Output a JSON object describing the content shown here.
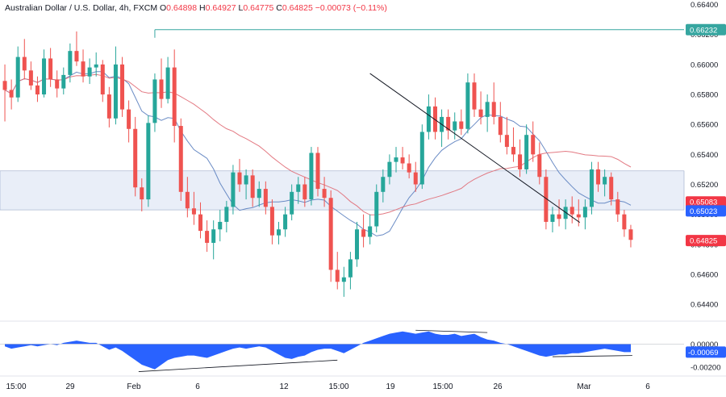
{
  "header": {
    "symbol": "Australian Dollar / U.S. Dollar, 4h, FXCM",
    "open_label": "O",
    "open": "0.64898",
    "high_label": "H",
    "high": "0.64927",
    "low_label": "L",
    "low": "0.64775",
    "close_label": "C",
    "close": "0.64825",
    "change": "−0.00073 (−0.11%)"
  },
  "colors": {
    "up": "#26a69a",
    "down": "#ef5350",
    "ma_fast": "#5b7fbf",
    "ma_slow": "#e06c75",
    "resistance_line": "#36a6a0",
    "zone_fill": "#e9eef8",
    "zone_border": "#9aa9c8",
    "trendline": "#131722",
    "macd_fill": "#2962ff",
    "price_tag_red": "#f23645",
    "price_tag_blue": "#2962ff",
    "price_tag_teal": "#26a69a"
  },
  "chart_data": [
    {
      "type": "candlestick",
      "title": "Australian Dollar / U.S. Dollar, 4h, FXCM",
      "y_ticks": [
        "0.66400",
        "0.66200",
        "0.66000",
        "0.65800",
        "0.65600",
        "0.65400",
        "0.65200",
        "0.65000",
        "0.64800",
        "0.64600",
        "0.64400"
      ],
      "x_ticks": [
        "15:00",
        "29",
        "Feb",
        "6",
        "12",
        "15:00",
        "19",
        "15:00",
        "26",
        "Mar",
        "6"
      ],
      "ylim": [
        0.6432,
        0.6643
      ],
      "price_labels": [
        {
          "text": "0.66232",
          "value": 0.66232,
          "color": "resistance_line"
        },
        {
          "text": "0.65083",
          "value": 0.65083,
          "color": "price_tag_red"
        },
        {
          "text": "0.65023",
          "value": 0.65023,
          "color": "price_tag_blue"
        },
        {
          "text": "0.64825",
          "value": 0.64825,
          "color": "price_tag_red"
        }
      ],
      "resistance_level": 0.66232,
      "support_zone": [
        0.6503,
        0.6529
      ],
      "trendline": {
        "from": [
          56,
          0.6594
        ],
        "to": [
          81,
          0.65
        ]
      },
      "candles": [
        [
          0.6589,
          0.66,
          0.6562,
          0.6583
        ],
        [
          0.6583,
          0.659,
          0.657,
          0.6578
        ],
        [
          0.6578,
          0.6612,
          0.6575,
          0.6605
        ],
        [
          0.6605,
          0.6617,
          0.659,
          0.6596
        ],
        [
          0.6596,
          0.6602,
          0.6583,
          0.6586
        ],
        [
          0.6586,
          0.6592,
          0.6575,
          0.658
        ],
        [
          0.658,
          0.661,
          0.6578,
          0.6604
        ],
        [
          0.6604,
          0.6611,
          0.6585,
          0.659
        ],
        [
          0.659,
          0.6596,
          0.6578,
          0.6584
        ],
        [
          0.6584,
          0.6598,
          0.658,
          0.6593
        ],
        [
          0.6593,
          0.6614,
          0.6588,
          0.6609
        ],
        [
          0.6609,
          0.6622,
          0.6599,
          0.6602
        ],
        [
          0.6602,
          0.661,
          0.6588,
          0.6592
        ],
        [
          0.6592,
          0.6604,
          0.6587,
          0.6598
        ],
        [
          0.6598,
          0.6608,
          0.6592,
          0.66
        ],
        [
          0.66,
          0.6603,
          0.6575,
          0.658
        ],
        [
          0.658,
          0.6585,
          0.6558,
          0.6564
        ],
        [
          0.6564,
          0.6612,
          0.656,
          0.66
        ],
        [
          0.66,
          0.6605,
          0.6565,
          0.657
        ],
        [
          0.657,
          0.6576,
          0.6548,
          0.6557
        ],
        [
          0.6557,
          0.6565,
          0.6512,
          0.6518
        ],
        [
          0.6518,
          0.6524,
          0.6502,
          0.651
        ],
        [
          0.651,
          0.6566,
          0.6505,
          0.6561
        ],
        [
          0.6561,
          0.6594,
          0.6555,
          0.659
        ],
        [
          0.659,
          0.6604,
          0.6571,
          0.6577
        ],
        [
          0.6577,
          0.6605,
          0.6574,
          0.6598
        ],
        [
          0.6598,
          0.661,
          0.6548,
          0.6559
        ],
        [
          0.6559,
          0.6564,
          0.6509,
          0.6515
        ],
        [
          0.6515,
          0.6525,
          0.6498,
          0.6504
        ],
        [
          0.6504,
          0.6515,
          0.6493,
          0.65
        ],
        [
          0.65,
          0.6508,
          0.6484,
          0.6489
        ],
        [
          0.6489,
          0.6496,
          0.6475,
          0.6481
        ],
        [
          0.6481,
          0.6496,
          0.647,
          0.649
        ],
        [
          0.649,
          0.6503,
          0.6482,
          0.6495
        ],
        [
          0.6495,
          0.6509,
          0.6488,
          0.6505
        ],
        [
          0.6505,
          0.6533,
          0.65,
          0.6528
        ],
        [
          0.6528,
          0.6537,
          0.6515,
          0.652
        ],
        [
          0.652,
          0.653,
          0.651,
          0.6526
        ],
        [
          0.6526,
          0.653,
          0.6505,
          0.6511
        ],
        [
          0.6511,
          0.6522,
          0.6505,
          0.6517
        ],
        [
          0.6517,
          0.6522,
          0.65,
          0.6505
        ],
        [
          0.6505,
          0.651,
          0.648,
          0.6486
        ],
        [
          0.6486,
          0.6495,
          0.648,
          0.649
        ],
        [
          0.649,
          0.6505,
          0.6485,
          0.65
        ],
        [
          0.65,
          0.652,
          0.6496,
          0.6515
        ],
        [
          0.6515,
          0.6525,
          0.6507,
          0.652
        ],
        [
          0.652,
          0.6525,
          0.6505,
          0.651
        ],
        [
          0.651,
          0.6545,
          0.6506,
          0.6541
        ],
        [
          0.6541,
          0.6545,
          0.6512,
          0.6517
        ],
        [
          0.6517,
          0.6525,
          0.6505,
          0.6511
        ],
        [
          0.6511,
          0.6516,
          0.6455,
          0.6463
        ],
        [
          0.6463,
          0.6475,
          0.645,
          0.6455
        ],
        [
          0.6455,
          0.6465,
          0.6445,
          0.6458
        ],
        [
          0.6458,
          0.6475,
          0.645,
          0.647
        ],
        [
          0.647,
          0.6495,
          0.6465,
          0.649
        ],
        [
          0.649,
          0.65,
          0.6478,
          0.6485
        ],
        [
          0.6485,
          0.65,
          0.648,
          0.6492
        ],
        [
          0.6492,
          0.652,
          0.6488,
          0.6515
        ],
        [
          0.6515,
          0.653,
          0.6508,
          0.6525
        ],
        [
          0.6525,
          0.654,
          0.652,
          0.6535
        ],
        [
          0.6535,
          0.6545,
          0.6528,
          0.6538
        ],
        [
          0.6538,
          0.6545,
          0.653,
          0.6534
        ],
        [
          0.6534,
          0.654,
          0.6524,
          0.6528
        ],
        [
          0.6528,
          0.6535,
          0.6515,
          0.652
        ],
        [
          0.652,
          0.656,
          0.6517,
          0.6555
        ],
        [
          0.6555,
          0.658,
          0.655,
          0.6572
        ],
        [
          0.6572,
          0.6578,
          0.655,
          0.6555
        ],
        [
          0.6555,
          0.657,
          0.6545,
          0.6565
        ],
        [
          0.6565,
          0.657,
          0.655,
          0.6556
        ],
        [
          0.6556,
          0.6568,
          0.655,
          0.6562
        ],
        [
          0.6562,
          0.657,
          0.6553,
          0.6557
        ],
        [
          0.6557,
          0.6594,
          0.6554,
          0.6588
        ],
        [
          0.6588,
          0.6594,
          0.6565,
          0.657
        ],
        [
          0.657,
          0.6582,
          0.656,
          0.6565
        ],
        [
          0.6565,
          0.658,
          0.6555,
          0.6575
        ],
        [
          0.6575,
          0.6588,
          0.656,
          0.6565
        ],
        [
          0.6565,
          0.6575,
          0.6548,
          0.6553
        ],
        [
          0.6553,
          0.6565,
          0.654,
          0.6545
        ],
        [
          0.6545,
          0.6558,
          0.6535,
          0.654
        ],
        [
          0.654,
          0.655,
          0.6525,
          0.653
        ],
        [
          0.653,
          0.656,
          0.6527,
          0.6553
        ],
        [
          0.6553,
          0.6562,
          0.6535,
          0.654
        ],
        [
          0.654,
          0.6548,
          0.652,
          0.6525
        ],
        [
          0.6525,
          0.653,
          0.649,
          0.6495
        ],
        [
          0.6495,
          0.6505,
          0.6488,
          0.65
        ],
        [
          0.65,
          0.651,
          0.6492,
          0.6497
        ],
        [
          0.6497,
          0.651,
          0.649,
          0.6505
        ],
        [
          0.6505,
          0.6512,
          0.6494,
          0.65
        ],
        [
          0.65,
          0.651,
          0.6492,
          0.6498
        ],
        [
          0.6498,
          0.651,
          0.649,
          0.6505
        ],
        [
          0.6505,
          0.6535,
          0.65,
          0.653
        ],
        [
          0.653,
          0.6535,
          0.6515,
          0.652
        ],
        [
          0.652,
          0.653,
          0.6512,
          0.6525
        ],
        [
          0.6525,
          0.6528,
          0.6506,
          0.651
        ],
        [
          0.651,
          0.6515,
          0.6495,
          0.65
        ],
        [
          0.65,
          0.6503,
          0.6485,
          0.649
        ],
        [
          0.649,
          0.6493,
          0.6478,
          0.6483
        ]
      ],
      "moving_averages": [
        {
          "color": "ma_fast",
          "period": 10
        },
        {
          "color": "ma_slow",
          "period": 30
        }
      ]
    },
    {
      "type": "area",
      "title": "",
      "y_ticks": [
        "0.00000",
        "-0.00200"
      ],
      "value_label": "-0.00069",
      "ylim": [
        -0.0025,
        0.0015
      ],
      "values": [
        -0.0002,
        -0.0004,
        -0.0003,
        -0.0002,
        -0.0001,
        -0.0002,
        -0.0001,
        0.0,
        -0.0001,
        0.0001,
        0.0002,
        0.0003,
        0.0002,
        0.0001,
        0.0001,
        -0.0002,
        -0.0005,
        -0.0003,
        -0.0006,
        -0.001,
        -0.0014,
        -0.0018,
        -0.002,
        -0.0022,
        -0.0018,
        -0.0014,
        -0.0012,
        -0.0011,
        -0.001,
        -0.001,
        -0.0011,
        -0.0012,
        -0.001,
        -0.0008,
        -0.0006,
        -0.0004,
        -0.0003,
        -0.0004,
        -0.0003,
        -0.0002,
        -0.0003,
        -0.0006,
        -0.0009,
        -0.0012,
        -0.0013,
        -0.0011,
        -0.001,
        -0.0007,
        -0.0005,
        -0.0004,
        -0.0004,
        -0.0006,
        -0.0008,
        -0.0005,
        -0.0002,
        0.0001,
        0.0003,
        0.0005,
        0.0007,
        0.0009,
        0.001,
        0.0011,
        0.001,
        0.0009,
        0.001,
        0.0011,
        0.0009,
        0.0008,
        0.0008,
        0.0009,
        0.0007,
        0.0008,
        0.0009,
        0.0006,
        0.0004,
        0.0003,
        0.0001,
        0.0,
        -0.0002,
        -0.0004,
        -0.0006,
        -0.0008,
        -0.001,
        -0.0011,
        -0.001,
        -0.0009,
        -0.0009,
        -0.0008,
        -0.0008,
        -0.0007,
        -0.0006,
        -0.0005,
        -0.0004,
        -0.0005,
        -0.0006,
        -0.0007,
        -0.0007
      ]
    }
  ]
}
